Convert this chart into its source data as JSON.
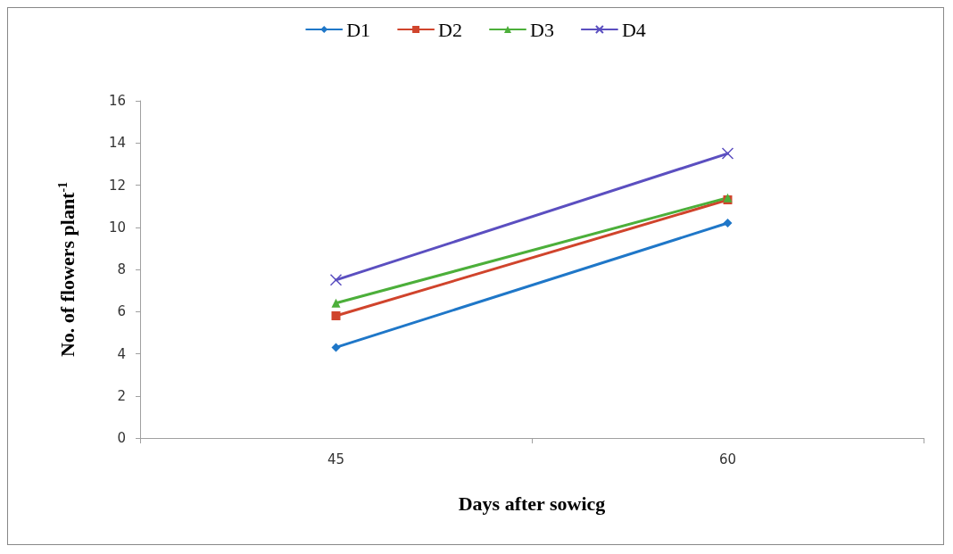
{
  "chart_data": {
    "type": "line",
    "xlabel": "Days after sowicg",
    "ylabel": "No. of flowers plant$^{-1}$",
    "categories": [
      "45",
      "60"
    ],
    "ylim": [
      0,
      16
    ],
    "yticks": [
      0,
      2,
      4,
      6,
      8,
      10,
      12,
      14,
      16
    ],
    "grid": false,
    "legend": "top",
    "series": [
      {
        "name": "D1",
        "color": "#1f77c8",
        "marker": "diamond",
        "values": [
          4.3,
          10.2
        ]
      },
      {
        "name": "D2",
        "color": "#d0442c",
        "marker": "square",
        "values": [
          5.8,
          11.3
        ]
      },
      {
        "name": "D3",
        "color": "#4caf3a",
        "marker": "triangle",
        "values": [
          6.4,
          11.4
        ]
      },
      {
        "name": "D4",
        "color": "#5b4fc0",
        "marker": "cross",
        "values": [
          7.5,
          13.5
        ]
      }
    ]
  }
}
